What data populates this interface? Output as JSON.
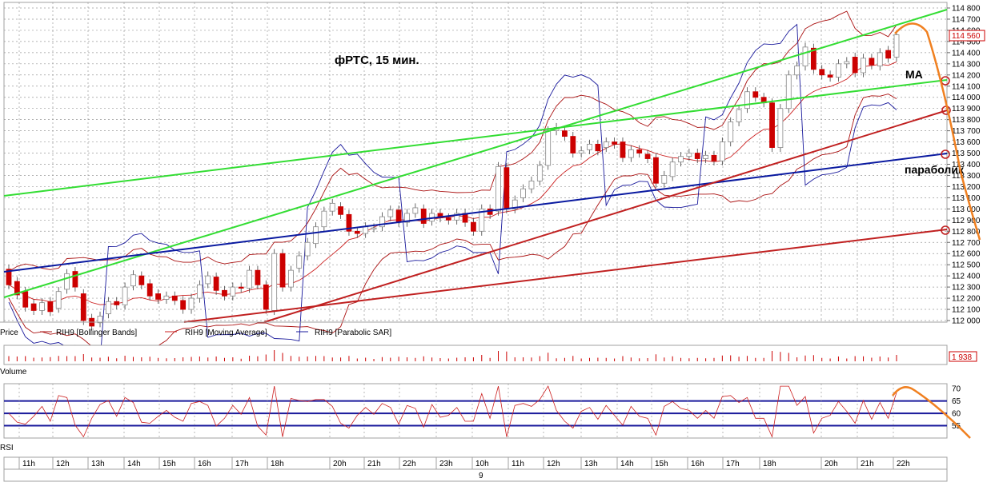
{
  "chart_data": [
    {
      "type": "candlestick",
      "panel": "price",
      "title": "фРТС,  15 мин.",
      "legend": [
        "Price",
        "RIH9 [Bollinger Bands]",
        "RIH9 [Moving Average]",
        "RIH9 [Parabolic SAR]"
      ],
      "annotations": [
        "МА",
        "параболик"
      ],
      "last_price_label": "114 560",
      "ylim": [
        112000,
        114800
      ],
      "y_ticks": [
        "112 000",
        "112 100",
        "112 200",
        "112 300",
        "112 400",
        "112 500",
        "112 600",
        "112 700",
        "112 800",
        "112 900",
        "113 000",
        "113 100",
        "113 200",
        "113 300",
        "113 400",
        "113 500",
        "113 600",
        "113 700",
        "113 800",
        "113 900",
        "114 000",
        "114 100",
        "114 200",
        "114 300",
        "114 400",
        "114 500",
        "114 600",
        "114 700",
        "114 800"
      ],
      "grid": true,
      "candles": [
        {
          "o": 112460,
          "c": 112320
        },
        {
          "o": 112350,
          "c": 112230
        },
        {
          "o": 112260,
          "c": 112120
        },
        {
          "o": 112150,
          "c": 112090
        },
        {
          "o": 112090,
          "c": 112160
        },
        {
          "o": 112170,
          "c": 112080
        },
        {
          "o": 112110,
          "c": 112260
        },
        {
          "o": 112280,
          "c": 112420
        },
        {
          "o": 112440,
          "c": 112300
        },
        {
          "o": 112240,
          "c": 112000
        },
        {
          "o": 112020,
          "c": 111950
        },
        {
          "o": 111980,
          "c": 112040
        },
        {
          "o": 112060,
          "c": 112170
        },
        {
          "o": 112170,
          "c": 112140
        },
        {
          "o": 112140,
          "c": 112300
        },
        {
          "o": 112310,
          "c": 112410
        },
        {
          "o": 112400,
          "c": 112320
        },
        {
          "o": 112330,
          "c": 112220
        },
        {
          "o": 112240,
          "c": 112190
        },
        {
          "o": 112190,
          "c": 112220
        },
        {
          "o": 112220,
          "c": 112180
        },
        {
          "o": 112180,
          "c": 112100
        },
        {
          "o": 112100,
          "c": 112200
        },
        {
          "o": 112200,
          "c": 112320
        },
        {
          "o": 112330,
          "c": 112400
        },
        {
          "o": 112390,
          "c": 112270
        },
        {
          "o": 112270,
          "c": 112220
        },
        {
          "o": 112220,
          "c": 112300
        },
        {
          "o": 112300,
          "c": 112290
        },
        {
          "o": 112290,
          "c": 112450
        },
        {
          "o": 112450,
          "c": 112320
        },
        {
          "o": 112320,
          "c": 112100
        },
        {
          "o": 112090,
          "c": 112600
        },
        {
          "o": 112600,
          "c": 112300
        },
        {
          "o": 112300,
          "c": 112450
        },
        {
          "o": 112470,
          "c": 112580
        },
        {
          "o": 112580,
          "c": 112700
        },
        {
          "o": 112690,
          "c": 112840
        },
        {
          "o": 112840,
          "c": 112980
        },
        {
          "o": 112980,
          "c": 113050
        },
        {
          "o": 113020,
          "c": 112950
        },
        {
          "o": 112950,
          "c": 112800
        },
        {
          "o": 112800,
          "c": 112780
        },
        {
          "o": 112780,
          "c": 112840
        },
        {
          "o": 112830,
          "c": 112830
        },
        {
          "o": 112840,
          "c": 112930
        },
        {
          "o": 112930,
          "c": 112990
        },
        {
          "o": 112990,
          "c": 112880
        },
        {
          "o": 112880,
          "c": 112960
        },
        {
          "o": 112960,
          "c": 113010
        },
        {
          "o": 113000,
          "c": 112870
        },
        {
          "o": 112890,
          "c": 112960
        },
        {
          "o": 112960,
          "c": 112920
        },
        {
          "o": 112920,
          "c": 112900
        },
        {
          "o": 112900,
          "c": 112960
        },
        {
          "o": 112960,
          "c": 112880
        },
        {
          "o": 112880,
          "c": 112800
        },
        {
          "o": 112800,
          "c": 113000
        },
        {
          "o": 113000,
          "c": 112950
        },
        {
          "o": 112980,
          "c": 113380
        },
        {
          "o": 113370,
          "c": 113000
        },
        {
          "o": 113000,
          "c": 113080
        },
        {
          "o": 113100,
          "c": 113180
        },
        {
          "o": 113180,
          "c": 113250
        },
        {
          "o": 113250,
          "c": 113390
        },
        {
          "o": 113390,
          "c": 113700
        },
        {
          "o": 113700,
          "c": 113730
        },
        {
          "o": 113700,
          "c": 113650
        },
        {
          "o": 113650,
          "c": 113500
        },
        {
          "o": 113500,
          "c": 113520
        },
        {
          "o": 113530,
          "c": 113580
        },
        {
          "o": 113580,
          "c": 113520
        },
        {
          "o": 113550,
          "c": 113600
        },
        {
          "o": 113600,
          "c": 113580
        },
        {
          "o": 113600,
          "c": 113460
        },
        {
          "o": 113460,
          "c": 113530
        },
        {
          "o": 113530,
          "c": 113500
        },
        {
          "o": 113490,
          "c": 113450
        },
        {
          "o": 113460,
          "c": 113230
        },
        {
          "o": 113230,
          "c": 113300
        },
        {
          "o": 113290,
          "c": 113420
        },
        {
          "o": 113420,
          "c": 113470
        },
        {
          "o": 113470,
          "c": 113500
        },
        {
          "o": 113500,
          "c": 113450
        },
        {
          "o": 113450,
          "c": 113480
        },
        {
          "o": 113480,
          "c": 113430
        },
        {
          "o": 113430,
          "c": 113600
        },
        {
          "o": 113600,
          "c": 113780
        },
        {
          "o": 113780,
          "c": 113890
        },
        {
          "o": 113900,
          "c": 114050
        },
        {
          "o": 114050,
          "c": 114000
        },
        {
          "o": 114000,
          "c": 113950
        },
        {
          "o": 113950,
          "c": 113550
        },
        {
          "o": 113550,
          "c": 113900
        },
        {
          "o": 113900,
          "c": 114200
        },
        {
          "o": 114200,
          "c": 114280
        },
        {
          "o": 114280,
          "c": 114450
        },
        {
          "o": 114440,
          "c": 114250
        },
        {
          "o": 114250,
          "c": 114200
        },
        {
          "o": 114200,
          "c": 114180
        },
        {
          "o": 114180,
          "c": 114300
        },
        {
          "o": 114300,
          "c": 114320
        },
        {
          "o": 114360,
          "c": 114220
        },
        {
          "o": 114220,
          "c": 114350
        },
        {
          "o": 114350,
          "c": 114290
        },
        {
          "o": 114280,
          "c": 114400
        },
        {
          "o": 114420,
          "c": 114350
        },
        {
          "o": 114360,
          "c": 114560
        }
      ]
    },
    {
      "type": "bar",
      "panel": "volume",
      "legend": [
        "Volume"
      ],
      "last_value_label": "1 938"
    },
    {
      "type": "line",
      "panel": "rsi",
      "legend": [
        "RSI"
      ],
      "ylim": [
        50,
        72
      ],
      "y_ticks": [
        "55",
        "60",
        "65",
        "70"
      ],
      "levels": [
        55,
        60,
        65
      ]
    }
  ],
  "time_axis": {
    "labels": [
      "11h",
      "12h",
      "13h",
      "14h",
      "15h",
      "16h",
      "17h",
      "18h",
      "20h",
      "21h",
      "22h",
      "23h",
      "10h",
      "11h",
      "12h",
      "13h",
      "14h",
      "15h",
      "16h",
      "17h",
      "18h",
      "20h",
      "21h",
      "22h"
    ],
    "date_label": "9"
  },
  "colors": {
    "up": "#ffffff",
    "down": "#cc0000",
    "bollinger": "#aa1010",
    "moving_average": "#cc2020",
    "parabolic_sar": "#1a1a9c",
    "trend_green": "#33dd33",
    "trend_blue": "#0a1aa0",
    "trend_red": "#c02020",
    "forecast": "#f08020"
  }
}
